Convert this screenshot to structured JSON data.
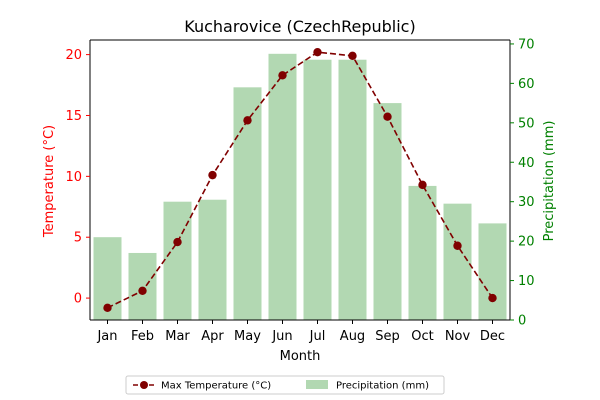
{
  "chart_data": {
    "type": "bar",
    "title": "Kucharovice (CzechRepublic)",
    "xlabel": "Month",
    "ylabel_left": "Temperature (°C)",
    "ylabel_right": "Precipitation (mm)",
    "categories": [
      "Jan",
      "Feb",
      "Mar",
      "Apr",
      "May",
      "Jun",
      "Jul",
      "Aug",
      "Sep",
      "Oct",
      "Nov",
      "Dec"
    ],
    "series": [
      {
        "name": "Max Temperature (°C)",
        "type": "line",
        "axis": "left",
        "color": "#800000",
        "style": "dashed",
        "marker": "circle",
        "values": [
          -0.8,
          0.6,
          4.6,
          10.1,
          14.6,
          18.3,
          20.2,
          19.9,
          14.9,
          9.3,
          4.3,
          -0.0
        ]
      },
      {
        "name": "Precipitation (mm)",
        "type": "bar",
        "axis": "right",
        "color": "#b2d8b2",
        "values": [
          21,
          17,
          30,
          30.5,
          59,
          67.5,
          66,
          66,
          55,
          34,
          29.5,
          24.5
        ]
      }
    ],
    "ylim_left": [
      -1.8,
      21.2
    ],
    "ylim_right": [
      0,
      71
    ],
    "yticks_left": [
      0,
      5,
      10,
      15,
      20
    ],
    "yticks_right": [
      0,
      10,
      20,
      30,
      40,
      50,
      60,
      70
    ],
    "left_axis_color": "#ff0000",
    "right_axis_color": "#008000",
    "grid": false,
    "legend_position": "bottom-center"
  }
}
